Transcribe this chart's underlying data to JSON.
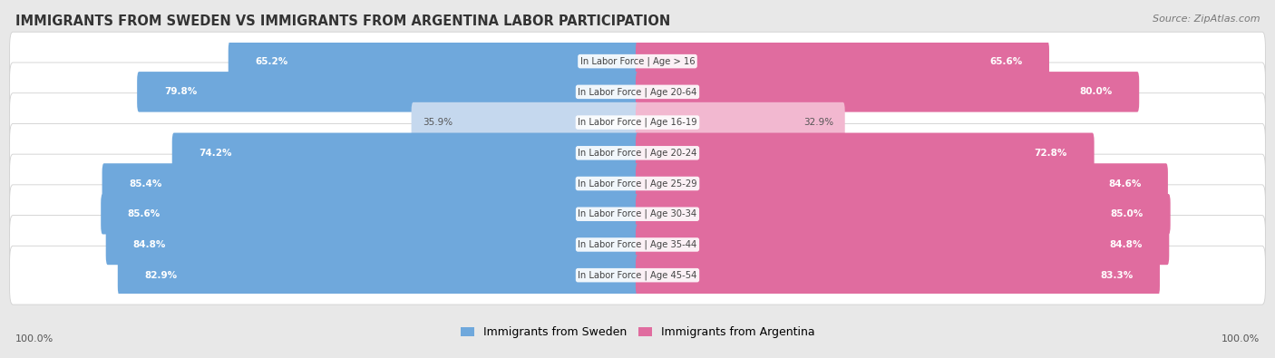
{
  "title": "IMMIGRANTS FROM SWEDEN VS IMMIGRANTS FROM ARGENTINA LABOR PARTICIPATION",
  "source": "Source: ZipAtlas.com",
  "categories": [
    "In Labor Force | Age > 16",
    "In Labor Force | Age 20-64",
    "In Labor Force | Age 16-19",
    "In Labor Force | Age 20-24",
    "In Labor Force | Age 25-29",
    "In Labor Force | Age 30-34",
    "In Labor Force | Age 35-44",
    "In Labor Force | Age 45-54"
  ],
  "sweden_values": [
    65.2,
    79.8,
    35.9,
    74.2,
    85.4,
    85.6,
    84.8,
    82.9
  ],
  "argentina_values": [
    65.6,
    80.0,
    32.9,
    72.8,
    84.6,
    85.0,
    84.8,
    83.3
  ],
  "sweden_color_strong": "#6FA8DC",
  "sweden_color_light": "#C5D8EE",
  "argentina_color_strong": "#E06C9F",
  "argentina_color_light": "#F2B8D0",
  "row_bg_color": "#f5f5f5",
  "row_border_color": "#d0d0d0",
  "background_color": "#e8e8e8",
  "max_value": 100.0,
  "legend_sweden": "Immigrants from Sweden",
  "legend_argentina": "Immigrants from Argentina",
  "bottom_left_label": "100.0%",
  "bottom_right_label": "100.0%",
  "light_threshold": 50.0
}
